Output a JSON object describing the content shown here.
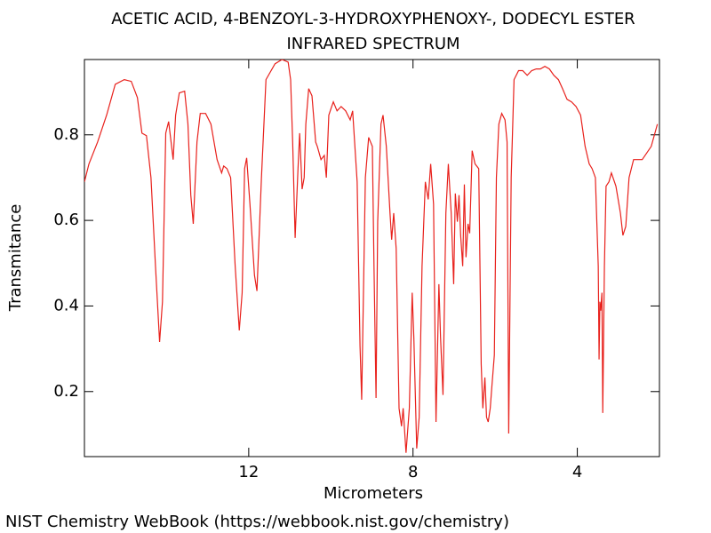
{
  "chart_data": {
    "type": "line",
    "title": "ACETIC ACID, 4-BENZOYL-3-HYDROXYPHENOXY-, DODECYL ESTER",
    "subtitle": "INFRARED SPECTRUM",
    "x_label": "Micrometers",
    "y_label": "Transmitance",
    "source": "NIST Chemistry WebBook (https://webbook.nist.gov/chemistry)",
    "xlim": [
      16,
      2
    ],
    "ylim": [
      0.048,
      0.976
    ],
    "xticks": [
      12,
      8,
      4
    ],
    "yticks": [
      0.2,
      0.4,
      0.6,
      0.8
    ],
    "x": [
      16.0,
      15.89,
      15.68,
      15.46,
      15.25,
      15.03,
      14.86,
      14.71,
      14.6,
      14.49,
      14.38,
      14.27,
      14.17,
      14.1,
      14.02,
      13.95,
      13.89,
      13.84,
      13.78,
      13.69,
      13.56,
      13.48,
      13.41,
      13.35,
      13.26,
      13.18,
      13.05,
      12.92,
      12.77,
      12.66,
      12.61,
      12.53,
      12.44,
      12.33,
      12.23,
      12.16,
      12.1,
      12.05,
      11.97,
      11.86,
      11.8,
      11.69,
      11.58,
      11.36,
      11.19,
      11.04,
      10.98,
      10.93,
      10.87,
      10.8,
      10.76,
      10.7,
      10.65,
      10.61,
      10.54,
      10.46,
      10.37,
      10.33,
      10.24,
      10.16,
      10.11,
      10.05,
      9.98,
      9.94,
      9.85,
      9.75,
      9.64,
      9.53,
      9.47,
      9.36,
      9.29,
      9.25,
      9.16,
      9.08,
      8.99,
      8.95,
      8.9,
      8.86,
      8.78,
      8.73,
      8.65,
      8.56,
      8.52,
      8.47,
      8.41,
      8.34,
      8.28,
      8.24,
      8.17,
      8.09,
      8.02,
      7.98,
      7.91,
      7.85,
      7.78,
      7.7,
      7.63,
      7.57,
      7.5,
      7.44,
      7.37,
      7.33,
      7.27,
      7.2,
      7.14,
      7.07,
      7.01,
      6.97,
      6.92,
      6.88,
      6.84,
      6.79,
      6.75,
      6.71,
      6.66,
      6.62,
      6.56,
      6.49,
      6.4,
      6.34,
      6.3,
      6.25,
      6.21,
      6.17,
      6.12,
      6.08,
      6.02,
      5.97,
      5.91,
      5.84,
      5.76,
      5.71,
      5.67,
      5.61,
      5.54,
      5.43,
      5.33,
      5.22,
      5.11,
      5.0,
      4.9,
      4.79,
      4.68,
      4.57,
      4.46,
      4.36,
      4.25,
      4.14,
      4.03,
      3.92,
      3.81,
      3.71,
      3.64,
      3.56,
      3.49,
      3.47,
      3.45,
      3.43,
      3.4,
      3.38,
      3.34,
      3.3,
      3.23,
      3.17,
      3.06,
      2.95,
      2.89,
      2.82,
      2.74,
      2.63,
      2.42,
      2.2,
      2.05
    ],
    "series": [
      {
        "color": "#e8211c",
        "values": [
          0.69,
          0.732,
          0.783,
          0.846,
          0.918,
          0.929,
          0.925,
          0.887,
          0.804,
          0.798,
          0.7,
          0.493,
          0.316,
          0.41,
          0.804,
          0.831,
          0.783,
          0.742,
          0.846,
          0.898,
          0.902,
          0.825,
          0.659,
          0.592,
          0.783,
          0.85,
          0.85,
          0.825,
          0.742,
          0.711,
          0.727,
          0.721,
          0.7,
          0.493,
          0.343,
          0.431,
          0.721,
          0.746,
          0.638,
          0.472,
          0.435,
          0.7,
          0.929,
          0.966,
          0.976,
          0.97,
          0.929,
          0.783,
          0.559,
          0.721,
          0.804,
          0.673,
          0.7,
          0.825,
          0.908,
          0.891,
          0.783,
          0.773,
          0.742,
          0.752,
          0.7,
          0.846,
          0.866,
          0.877,
          0.856,
          0.866,
          0.856,
          0.835,
          0.856,
          0.69,
          0.306,
          0.181,
          0.7,
          0.794,
          0.773,
          0.493,
          0.185,
          0.597,
          0.825,
          0.846,
          0.773,
          0.617,
          0.555,
          0.617,
          0.534,
          0.161,
          0.119,
          0.161,
          0.057,
          0.161,
          0.431,
          0.327,
          0.067,
          0.14,
          0.493,
          0.69,
          0.649,
          0.732,
          0.638,
          0.129,
          0.451,
          0.327,
          0.192,
          0.617,
          0.732,
          0.617,
          0.451,
          0.663,
          0.597,
          0.659,
          0.565,
          0.493,
          0.684,
          0.514,
          0.592,
          0.57,
          0.763,
          0.732,
          0.721,
          0.264,
          0.161,
          0.233,
          0.14,
          0.129,
          0.161,
          0.212,
          0.285,
          0.7,
          0.825,
          0.85,
          0.835,
          0.783,
          0.102,
          0.7,
          0.929,
          0.95,
          0.95,
          0.939,
          0.95,
          0.954,
          0.954,
          0.96,
          0.954,
          0.939,
          0.929,
          0.908,
          0.883,
          0.877,
          0.866,
          0.846,
          0.773,
          0.732,
          0.721,
          0.7,
          0.493,
          0.275,
          0.41,
          0.389,
          0.431,
          0.15,
          0.493,
          0.68,
          0.69,
          0.711,
          0.68,
          0.617,
          0.565,
          0.586,
          0.7,
          0.742,
          0.742,
          0.773,
          0.825
        ]
      }
    ]
  }
}
